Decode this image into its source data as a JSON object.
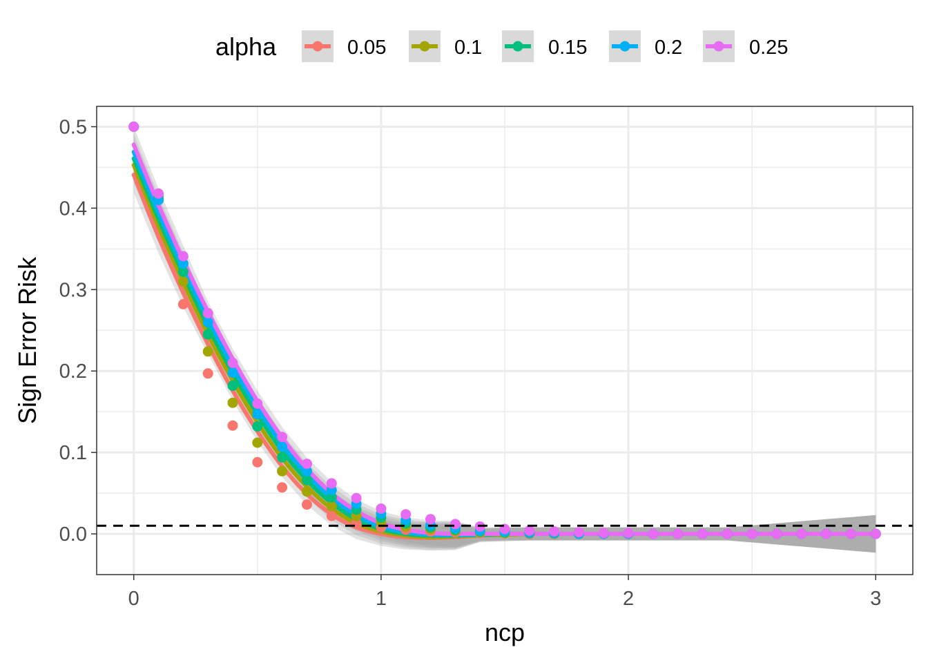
{
  "chart_data": {
    "type": "line",
    "xlabel": "ncp",
    "ylabel": "Sign Error Risk",
    "xlim": [
      -0.15,
      3.15
    ],
    "ylim": [
      -0.05,
      0.525
    ],
    "x_ticks": [
      {
        "value": 0,
        "label": "0"
      },
      {
        "value": 1,
        "label": "1"
      },
      {
        "value": 2,
        "label": "2"
      },
      {
        "value": 3,
        "label": "3"
      }
    ],
    "y_ticks": [
      {
        "value": 0.0,
        "label": "0.0"
      },
      {
        "value": 0.1,
        "label": "0.1"
      },
      {
        "value": 0.2,
        "label": "0.2"
      },
      {
        "value": 0.3,
        "label": "0.3"
      },
      {
        "value": 0.4,
        "label": "0.4"
      },
      {
        "value": 0.5,
        "label": "0.5"
      }
    ],
    "grid": true,
    "reference_line": {
      "y": 0.01,
      "style": "dashed",
      "color": "#000000"
    },
    "legend": {
      "title": "alpha",
      "position": "top"
    },
    "x": [
      0,
      0.1,
      0.2,
      0.3,
      0.4,
      0.5,
      0.6,
      0.7,
      0.8,
      0.9,
      1.0,
      1.1,
      1.2,
      1.3,
      1.4,
      1.5,
      1.6,
      1.7,
      1.8,
      1.9,
      2.0,
      2.1,
      2.2,
      2.3,
      2.4,
      2.5,
      2.6,
      2.7,
      2.8,
      2.9,
      3.0
    ],
    "series": [
      {
        "name": "0.05",
        "color": "#F8766D",
        "points": [
          0.5,
          0.41,
          0.282,
          0.197,
          0.133,
          0.088,
          0.057,
          0.036,
          0.022,
          0.013,
          0.008,
          0.005,
          0.003,
          0.002,
          0.001,
          0.001,
          0.0,
          0.0,
          0.0,
          0.0,
          0.0,
          0.0,
          0.0,
          0.0,
          0.0,
          0.0,
          0.0,
          0.0,
          0.0,
          0.0,
          0.0
        ],
        "fit": [
          0.441,
          0.365,
          0.296,
          0.233,
          0.176,
          0.126,
          0.083,
          0.049,
          0.024,
          0.008,
          0.0,
          -0.004,
          -0.005,
          -0.004,
          -0.002,
          -0.001,
          0.0,
          0.0,
          0.0,
          0.0,
          0.0,
          0.0,
          0.0,
          0.0,
          0.0,
          0.0,
          0.0,
          0.0,
          0.0,
          0.0,
          0.0
        ]
      },
      {
        "name": "0.1",
        "color": "#A3A500",
        "points": [
          0.5,
          0.412,
          0.31,
          0.224,
          0.161,
          0.112,
          0.077,
          0.052,
          0.034,
          0.022,
          0.014,
          0.009,
          0.006,
          0.004,
          0.002,
          0.001,
          0.001,
          0.0,
          0.0,
          0.0,
          0.0,
          0.0,
          0.0,
          0.0,
          0.0,
          0.0,
          0.0,
          0.0,
          0.0,
          0.0,
          0.0
        ],
        "fit": [
          0.453,
          0.378,
          0.309,
          0.245,
          0.188,
          0.137,
          0.093,
          0.058,
          0.031,
          0.013,
          0.003,
          -0.002,
          -0.004,
          -0.003,
          -0.002,
          -0.001,
          0.0,
          0.0,
          0.0,
          0.0,
          0.0,
          0.0,
          0.0,
          0.0,
          0.0,
          0.0,
          0.0,
          0.0,
          0.0,
          0.0,
          0.0
        ]
      },
      {
        "name": "0.15",
        "color": "#00BF7D",
        "points": [
          0.5,
          0.414,
          0.322,
          0.245,
          0.182,
          0.132,
          0.094,
          0.066,
          0.045,
          0.03,
          0.02,
          0.013,
          0.008,
          0.005,
          0.003,
          0.002,
          0.001,
          0.001,
          0.0,
          0.0,
          0.0,
          0.0,
          0.0,
          0.0,
          0.0,
          0.0,
          0.0,
          0.0,
          0.0,
          0.0,
          0.0
        ],
        "fit": [
          0.461,
          0.387,
          0.319,
          0.255,
          0.198,
          0.147,
          0.102,
          0.066,
          0.038,
          0.018,
          0.006,
          0.0,
          -0.002,
          -0.002,
          -0.001,
          0.0,
          0.0,
          0.0,
          0.0,
          0.0,
          0.0,
          0.0,
          0.0,
          0.0,
          0.0,
          0.0,
          0.0,
          0.0,
          0.0,
          0.0,
          0.0
        ]
      },
      {
        "name": "0.2",
        "color": "#00B0F6",
        "points": [
          0.5,
          0.41,
          0.332,
          0.26,
          0.198,
          0.147,
          0.107,
          0.077,
          0.054,
          0.037,
          0.025,
          0.017,
          0.011,
          0.007,
          0.004,
          0.003,
          0.002,
          0.001,
          0.0,
          0.0,
          0.0,
          0.0,
          0.0,
          0.0,
          0.0,
          0.0,
          0.0,
          0.0,
          0.0,
          0.0,
          0.0
        ],
        "fit": [
          0.469,
          0.395,
          0.327,
          0.264,
          0.206,
          0.155,
          0.11,
          0.073,
          0.044,
          0.023,
          0.009,
          0.002,
          -0.001,
          -0.001,
          -0.001,
          0.0,
          0.0,
          0.0,
          0.0,
          0.0,
          0.0,
          0.0,
          0.0,
          0.0,
          0.0,
          0.0,
          0.0,
          0.0,
          0.0,
          0.0,
          0.0
        ]
      },
      {
        "name": "0.25",
        "color": "#E76BF3",
        "points": [
          0.5,
          0.418,
          0.341,
          0.271,
          0.21,
          0.16,
          0.119,
          0.086,
          0.062,
          0.044,
          0.031,
          0.024,
          0.018,
          0.012,
          0.009,
          0.006,
          0.004,
          0.003,
          0.002,
          0.001,
          0.001,
          0.0,
          0.0,
          0.0,
          0.0,
          0.0,
          0.0,
          0.0,
          0.0,
          0.0,
          0.0
        ],
        "fit": [
          0.478,
          0.404,
          0.336,
          0.273,
          0.215,
          0.163,
          0.118,
          0.08,
          0.05,
          0.028,
          0.013,
          0.005,
          0.001,
          0.0,
          0.0,
          0.0,
          0.0,
          0.0,
          0.0,
          0.0,
          0.0,
          0.0,
          0.0,
          0.0,
          0.0,
          0.0,
          0.0,
          0.0,
          0.0,
          0.0,
          0.0
        ]
      }
    ]
  }
}
